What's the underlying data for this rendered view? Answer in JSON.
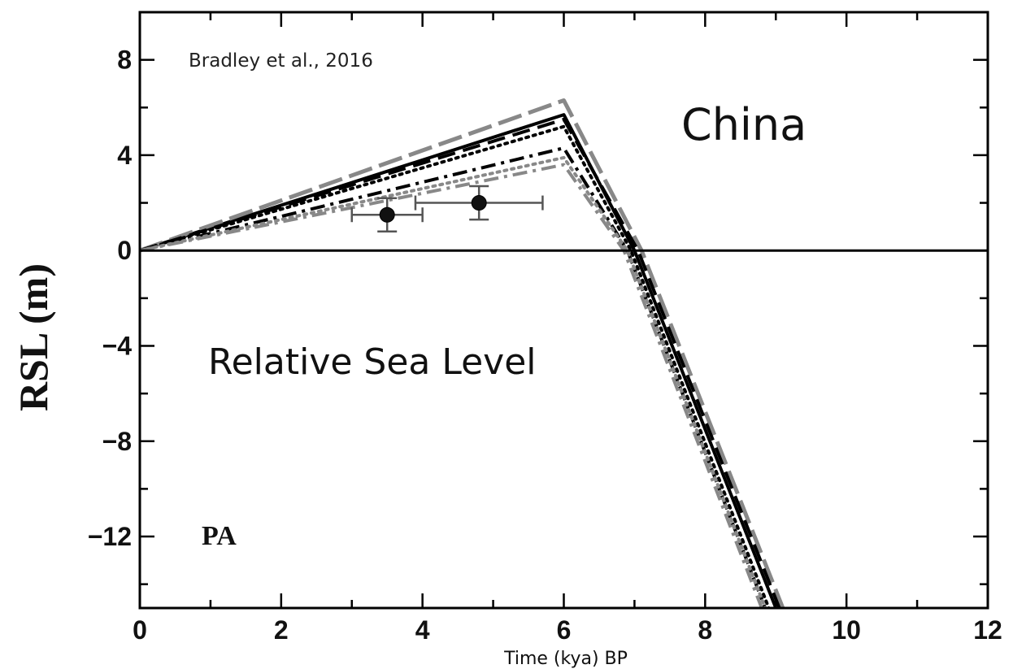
{
  "chart_data": {
    "type": "line",
    "xlabel": "Time (kya) BP",
    "ylabel": "RSL (m)",
    "xlim": [
      0,
      12
    ],
    "ylim": [
      -15,
      10
    ],
    "x_ticks": [
      0,
      2,
      4,
      6,
      8,
      10,
      12
    ],
    "y_ticks": [
      8,
      4,
      0,
      -4,
      -8,
      -12
    ],
    "x_minor_step": 1,
    "y_minor_step": 2,
    "zero_line": true,
    "grid": false,
    "legend": "none",
    "annotations": {
      "citation": "Bradley et al., 2016",
      "region": "China",
      "subtitle": "Relative Sea Level",
      "panel": "PA"
    },
    "series": [
      {
        "style": "solid",
        "color": "#000000",
        "x": [
          0,
          6,
          7,
          9
        ],
        "y": [
          0,
          5.7,
          0,
          -15
        ]
      },
      {
        "style": "long-dash",
        "color": "#888888",
        "x": [
          0,
          6,
          7.1,
          9.1
        ],
        "y": [
          0,
          6.3,
          0,
          -15
        ]
      },
      {
        "style": "dash",
        "color": "#000000",
        "x": [
          0,
          6,
          7.05,
          9.05
        ],
        "y": [
          0,
          5.5,
          0,
          -15
        ]
      },
      {
        "style": "dotted",
        "color": "#000000",
        "x": [
          0,
          6,
          6.95,
          8.9
        ],
        "y": [
          0,
          5.2,
          0,
          -15
        ]
      },
      {
        "style": "dash-dot",
        "color": "#000000",
        "x": [
          0,
          6,
          6.9,
          8.85
        ],
        "y": [
          0,
          4.3,
          0,
          -15
        ]
      },
      {
        "style": "dotted",
        "color": "#888888",
        "x": [
          0,
          6,
          6.9,
          8.85
        ],
        "y": [
          0,
          3.9,
          0,
          -15
        ]
      },
      {
        "style": "dash-dot",
        "color": "#888888",
        "x": [
          0,
          6,
          6.85,
          8.8
        ],
        "y": [
          0,
          3.6,
          0,
          -15
        ]
      }
    ],
    "observations": [
      {
        "x": 3.5,
        "y": 1.5,
        "xerr": 0.5,
        "yerr": 0.7
      },
      {
        "x": 4.8,
        "y": 2.0,
        "xerr": 0.9,
        "yerr": 0.7
      }
    ]
  }
}
